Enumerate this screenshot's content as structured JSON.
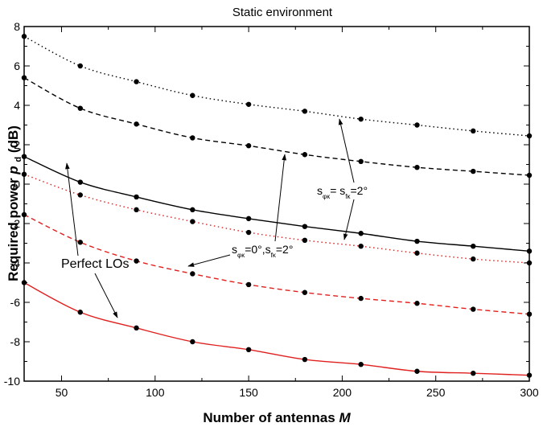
{
  "chart_data": {
    "type": "line",
    "title": "Static environment",
    "xlabel": "Number of antennas",
    "xlabel_var": "M",
    "ylabel": "Required power",
    "ylabel_var": "p",
    "ylabel_sub": "d",
    "ylabel_unit": "(dB)",
    "xlim": [
      30,
      300
    ],
    "ylim": [
      -10,
      8
    ],
    "xticks": [
      50,
      100,
      150,
      200,
      250,
      300
    ],
    "yticks": [
      -10,
      -8,
      -6,
      -4,
      -2,
      0,
      2,
      4,
      6,
      8
    ],
    "grid": false,
    "x": [
      30,
      60,
      90,
      120,
      150,
      180,
      210,
      240,
      270,
      300
    ],
    "series": [
      {
        "style": "dotted",
        "color": "#000000",
        "values": [
          7.5,
          6.0,
          5.2,
          4.5,
          4.05,
          3.7,
          3.3,
          3.0,
          2.7,
          2.45
        ]
      },
      {
        "style": "dashed",
        "color": "#000000",
        "values": [
          5.4,
          3.85,
          3.05,
          2.35,
          1.95,
          1.5,
          1.15,
          0.85,
          0.65,
          0.45
        ]
      },
      {
        "style": "solid",
        "color": "#000000",
        "values": [
          1.4,
          0.1,
          -0.65,
          -1.3,
          -1.75,
          -2.15,
          -2.5,
          -2.9,
          -3.15,
          -3.4
        ]
      },
      {
        "style": "dotted",
        "color": "#e0201e",
        "values": [
          0.5,
          -0.55,
          -1.3,
          -1.9,
          -2.45,
          -2.85,
          -3.15,
          -3.5,
          -3.8,
          -4.0
        ]
      },
      {
        "style": "dashed",
        "color": "#e0201e",
        "values": [
          -1.55,
          -2.95,
          -3.9,
          -4.55,
          -5.1,
          -5.5,
          -5.8,
          -6.05,
          -6.35,
          -6.6
        ]
      },
      {
        "style": "solid",
        "color": "#e0201e",
        "values": [
          -5.0,
          -6.5,
          -7.3,
          -8.0,
          -8.4,
          -8.9,
          -9.15,
          -9.5,
          -9.6,
          -9.7
        ]
      }
    ],
    "annotations": [
      {
        "text": "Perfect LOs"
      },
      {
        "main1": "s",
        "sub1": "φκ",
        "main2": "= s",
        "sub2": "fκ",
        "main3": "=2°"
      },
      {
        "main1": "s",
        "sub1": "φκ",
        "main2": "=0°,s",
        "sub2": "fκ",
        "main3": "=2°"
      }
    ]
  }
}
